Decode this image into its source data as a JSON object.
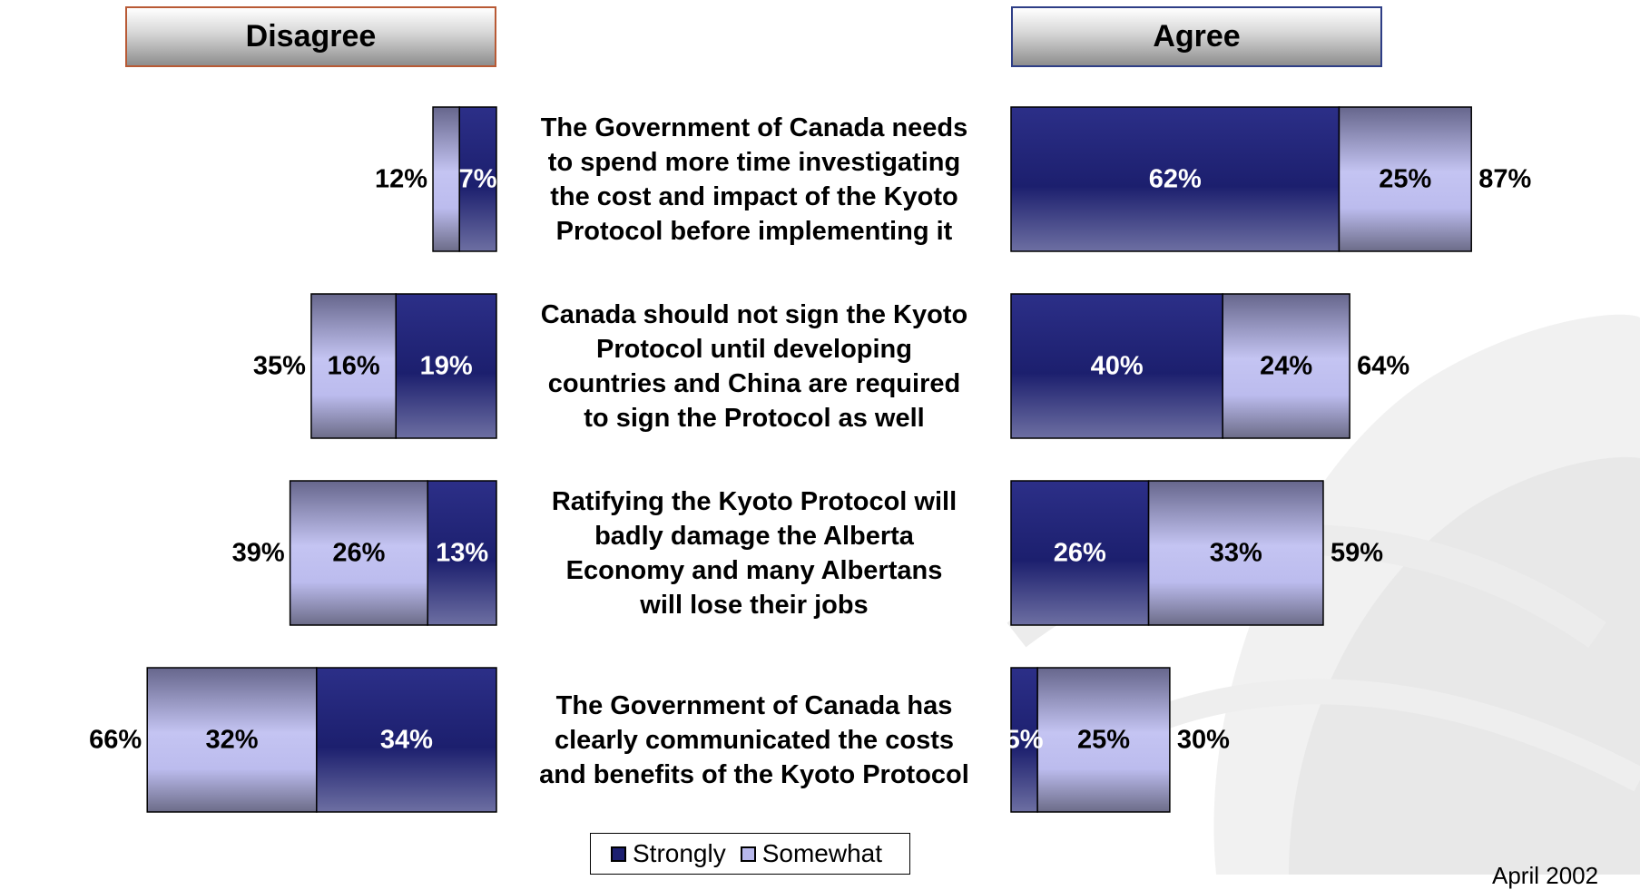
{
  "headers": {
    "disagree": "Disagree",
    "agree": "Agree"
  },
  "legend": {
    "strongly": "Strongly",
    "somewhat": "Somewhat"
  },
  "date_label": "April 2002",
  "colors": {
    "strongly": "#1c1f70",
    "somewhat": "#b8b8ec"
  },
  "chart_data": {
    "type": "bar",
    "orientation": "horizontal-diverging",
    "categories": [
      "The Government of Canada needs to spend more time investigating the cost and impact of the Kyoto Protocol before implementing it",
      "Canada should not sign the Kyoto Protocol until developing countries and China are required to sign the Protocol as well",
      "Ratifying the Kyoto Protocol will badly damage the Alberta Economy and many Albertans will lose their jobs",
      "The Government of Canada has clearly communicated the costs and benefits of the Kyoto Protocol"
    ],
    "series": [
      {
        "name": "Disagree Strongly",
        "values": [
          7,
          19,
          13,
          34
        ]
      },
      {
        "name": "Disagree Somewhat",
        "values": [
          5,
          16,
          26,
          32
        ]
      },
      {
        "name": "Agree Strongly",
        "values": [
          62,
          40,
          26,
          5
        ]
      },
      {
        "name": "Agree Somewhat",
        "values": [
          25,
          24,
          33,
          25
        ]
      }
    ],
    "totals": {
      "disagree": [
        12,
        35,
        39,
        66
      ],
      "agree": [
        87,
        64,
        59,
        30
      ]
    },
    "labels": {
      "disagree_strongly": [
        "7%",
        "19%",
        "13%",
        "34%"
      ],
      "disagree_somewhat": [
        "",
        "16%",
        "26%",
        "32%"
      ],
      "disagree_total": [
        "12%",
        "35%",
        "39%",
        "66%"
      ],
      "agree_strongly": [
        "62%",
        "40%",
        "26%",
        "5%"
      ],
      "agree_somewhat": [
        "25%",
        "24%",
        "33%",
        "25%"
      ],
      "agree_total": [
        "87%",
        "64%",
        "59%",
        "30%"
      ]
    },
    "statements": [
      [
        "The Government of Canada needs",
        "to spend more time investigating",
        "the cost and impact of the Kyoto",
        "Protocol before implementing it"
      ],
      [
        "Canada should not sign the Kyoto",
        "Protocol until developing",
        "countries and China are required",
        "to sign the Protocol as well"
      ],
      [
        "Ratifying the Kyoto Protocol will",
        "badly damage the Alberta",
        "Economy and many Albertans",
        "will lose their jobs"
      ],
      [
        "The Government of Canada has",
        "clearly communicated the costs",
        "and benefits of the Kyoto Protocol"
      ]
    ],
    "legend_position": "bottom-center"
  }
}
